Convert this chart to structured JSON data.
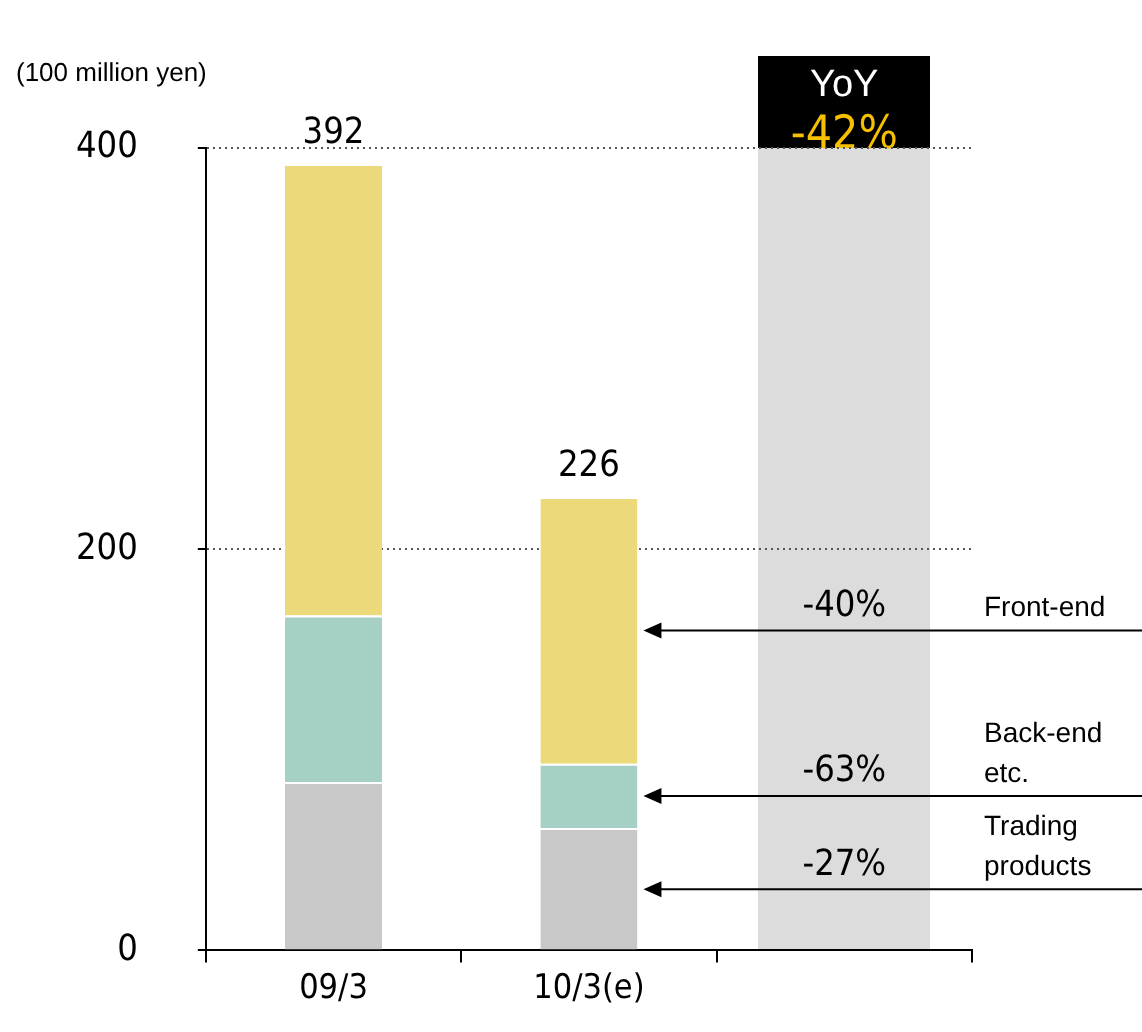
{
  "chart_data": {
    "type": "bar",
    "stacked": true,
    "ylabel": "(100 million yen)",
    "categories": [
      "09/3",
      "10/3(e)",
      null
    ],
    "series": [
      {
        "name": "Trading products",
        "color": "#c8c8c8",
        "values": [
          84,
          61,
          null
        ]
      },
      {
        "name": "Back-end etc.",
        "color": "#a6cfc5",
        "values": [
          83,
          32,
          null
        ]
      },
      {
        "name": "Front-end",
        "color": "#ecd97a",
        "values": [
          225,
          133,
          null
        ]
      }
    ],
    "totals": [
      "392",
      "226"
    ],
    "ylim": [
      0,
      400
    ],
    "yticks": [
      0,
      200,
      400
    ],
    "grid": "y",
    "legend": false,
    "annotations": [
      "YoY",
      "-42%",
      "-40%",
      "-63%",
      "-27%"
    ]
  }
}
